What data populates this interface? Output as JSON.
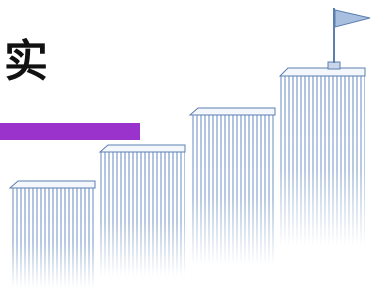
{
  "heading": {
    "text": "实"
  }
}
